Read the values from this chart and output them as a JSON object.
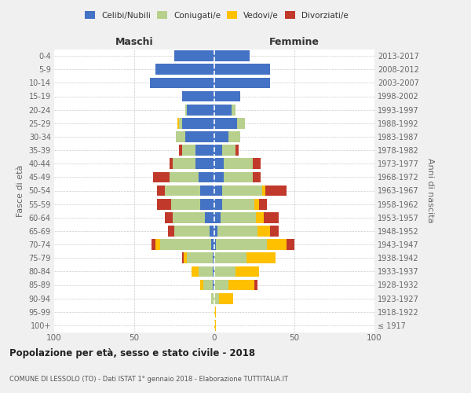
{
  "age_groups": [
    "100+",
    "95-99",
    "90-94",
    "85-89",
    "80-84",
    "75-79",
    "70-74",
    "65-69",
    "60-64",
    "55-59",
    "50-54",
    "45-49",
    "40-44",
    "35-39",
    "30-34",
    "25-29",
    "20-24",
    "15-19",
    "10-14",
    "5-9",
    "0-4"
  ],
  "birth_years": [
    "≤ 1917",
    "1918-1922",
    "1923-1927",
    "1928-1932",
    "1933-1937",
    "1938-1942",
    "1943-1947",
    "1948-1952",
    "1953-1957",
    "1958-1962",
    "1963-1967",
    "1968-1972",
    "1973-1977",
    "1978-1982",
    "1983-1987",
    "1988-1992",
    "1993-1997",
    "1998-2002",
    "2003-2007",
    "2008-2012",
    "2013-2017"
  ],
  "maschi": {
    "celibi": [
      0,
      0,
      0,
      1,
      1,
      1,
      2,
      3,
      6,
      9,
      9,
      10,
      12,
      12,
      18,
      20,
      17,
      20,
      40,
      37,
      25
    ],
    "coniugati": [
      0,
      0,
      2,
      6,
      9,
      16,
      32,
      22,
      20,
      18,
      22,
      18,
      14,
      8,
      6,
      2,
      1,
      0,
      0,
      0,
      0
    ],
    "vedovi": [
      0,
      0,
      0,
      2,
      4,
      2,
      3,
      0,
      0,
      0,
      0,
      0,
      0,
      0,
      0,
      1,
      0,
      0,
      0,
      0,
      0
    ],
    "divorziati": [
      0,
      0,
      0,
      0,
      0,
      1,
      2,
      4,
      5,
      9,
      5,
      10,
      2,
      2,
      0,
      0,
      0,
      0,
      0,
      0,
      0
    ]
  },
  "femmine": {
    "nubili": [
      0,
      0,
      0,
      0,
      0,
      0,
      1,
      2,
      4,
      5,
      5,
      6,
      6,
      5,
      9,
      14,
      11,
      16,
      35,
      35,
      22
    ],
    "coniugate": [
      0,
      0,
      3,
      9,
      13,
      20,
      32,
      25,
      22,
      20,
      25,
      18,
      18,
      8,
      7,
      5,
      2,
      0,
      0,
      0,
      0
    ],
    "vedove": [
      1,
      1,
      9,
      16,
      15,
      18,
      12,
      8,
      5,
      3,
      2,
      0,
      0,
      0,
      0,
      0,
      0,
      0,
      0,
      0,
      0
    ],
    "divorziate": [
      0,
      0,
      0,
      2,
      0,
      0,
      5,
      5,
      9,
      5,
      13,
      5,
      5,
      2,
      0,
      0,
      0,
      0,
      0,
      0,
      0
    ]
  },
  "colors": {
    "celibi": "#4472c4",
    "coniugati": "#b8d08d",
    "vedovi": "#ffc000",
    "divorziati": "#c0392b"
  },
  "xlim": 100,
  "title": "Popolazione per età, sesso e stato civile - 2018",
  "subtitle": "COMUNE DI LESSOLO (TO) - Dati ISTAT 1° gennaio 2018 - Elaborazione TUTTITALIA.IT",
  "ylabel_left": "Fasce di età",
  "ylabel_right": "Anni di nascita",
  "label_maschi": "Maschi",
  "label_femmine": "Femmine",
  "legend_labels": [
    "Celibi/Nubili",
    "Coniugati/e",
    "Vedovi/e",
    "Divorziati/e"
  ],
  "bg_color": "#f0f0f0",
  "plot_bg_color": "#ffffff"
}
